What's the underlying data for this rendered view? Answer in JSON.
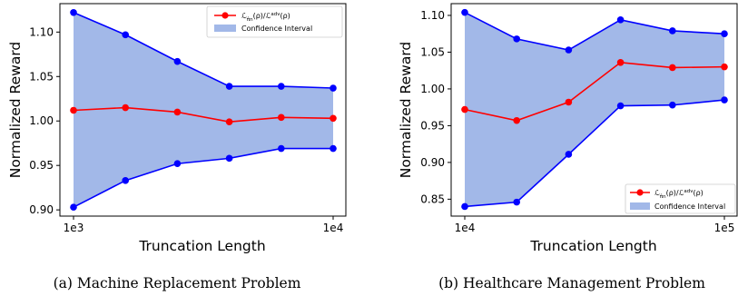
{
  "chart_data": [
    {
      "type": "line",
      "caption": "(a) Machine Replacement Problem",
      "xlabel": "Truncation Length",
      "ylabel": "Normalized Reward",
      "x_tick_labels": [
        "1e3",
        "1e4"
      ],
      "y_ticks": [
        0.9,
        0.95,
        1.0,
        1.05,
        1.1
      ],
      "ylim": [
        0.893,
        1.132
      ],
      "legend_position": "top-right",
      "series": [
        {
          "name": "L_{π̂_n}(ρ)/L^{adv}(ρ)",
          "color": "#ff0000",
          "values": [
            1.012,
            1.015,
            1.01,
            0.999,
            1.004,
            1.003
          ]
        },
        {
          "role": "upper",
          "color": "#0000ff",
          "values": [
            1.122,
            1.097,
            1.067,
            1.039,
            1.039,
            1.037
          ]
        },
        {
          "role": "lower",
          "color": "#0000ff",
          "values": [
            0.903,
            0.933,
            0.952,
            0.958,
            0.969,
            0.969
          ]
        }
      ],
      "band": {
        "name": "Confidence Interval",
        "color": "#a2b8e8"
      }
    },
    {
      "type": "line",
      "caption": "(b) Healthcare Management Problem",
      "xlabel": "Truncation Length",
      "ylabel": "Normalized Reward",
      "x_tick_labels": [
        "1e4",
        "1e5"
      ],
      "y_ticks": [
        0.85,
        0.9,
        0.95,
        1.0,
        1.05,
        1.1
      ],
      "ylim": [
        0.827,
        1.116
      ],
      "legend_position": "bottom-right",
      "series": [
        {
          "name": "L_{π̂_n}(ρ)/L^{adv}(ρ)",
          "color": "#ff0000",
          "values": [
            0.972,
            0.957,
            0.982,
            1.036,
            1.029,
            1.03
          ]
        },
        {
          "role": "upper",
          "color": "#0000ff",
          "values": [
            1.104,
            1.068,
            1.053,
            1.094,
            1.079,
            1.075
          ]
        },
        {
          "role": "lower",
          "color": "#0000ff",
          "values": [
            0.84,
            0.846,
            0.911,
            0.977,
            0.978,
            0.985
          ]
        }
      ],
      "band": {
        "name": "Confidence Interval",
        "color": "#a2b8e8"
      }
    }
  ]
}
